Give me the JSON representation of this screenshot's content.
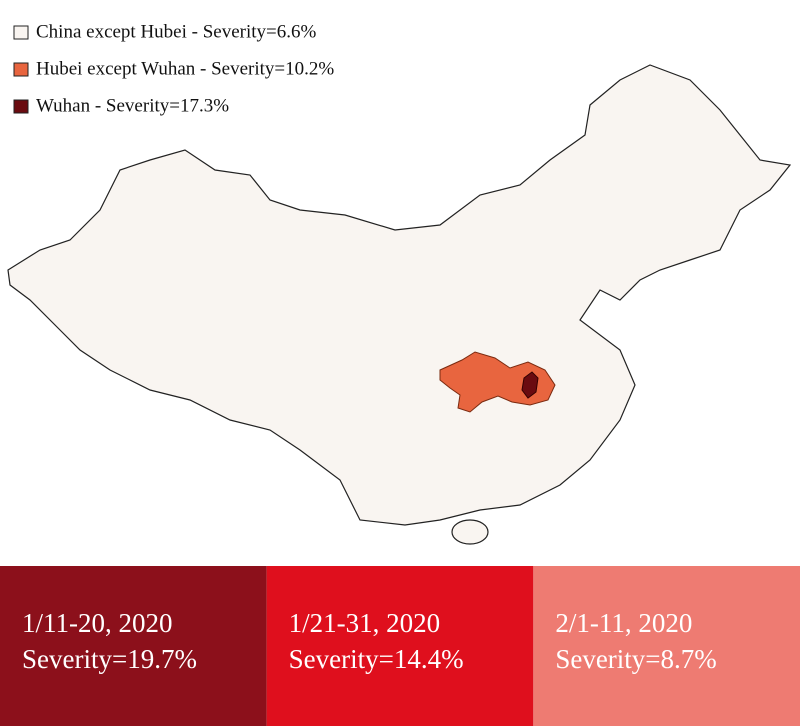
{
  "legend": [
    {
      "label": "China except Hubei - Severity=6.6%",
      "color": "#f9f5f1"
    },
    {
      "label": "Hubei except Wuhan - Severity=10.2%",
      "color": "#e8653f"
    },
    {
      "label": "Wuhan - Severity=17.3%",
      "color": "#6a0b10"
    }
  ],
  "panels": [
    {
      "period": "1/11-20, 2020",
      "severity": "Severity=19.7%",
      "color": "#8c101b"
    },
    {
      "period": "1/21-31, 2020",
      "severity": "Severity=14.4%",
      "color": "#df0f1d"
    },
    {
      "period": "2/1-11, 2020",
      "severity": "Severity=8.7%",
      "color": "#ee7b72"
    }
  ]
}
